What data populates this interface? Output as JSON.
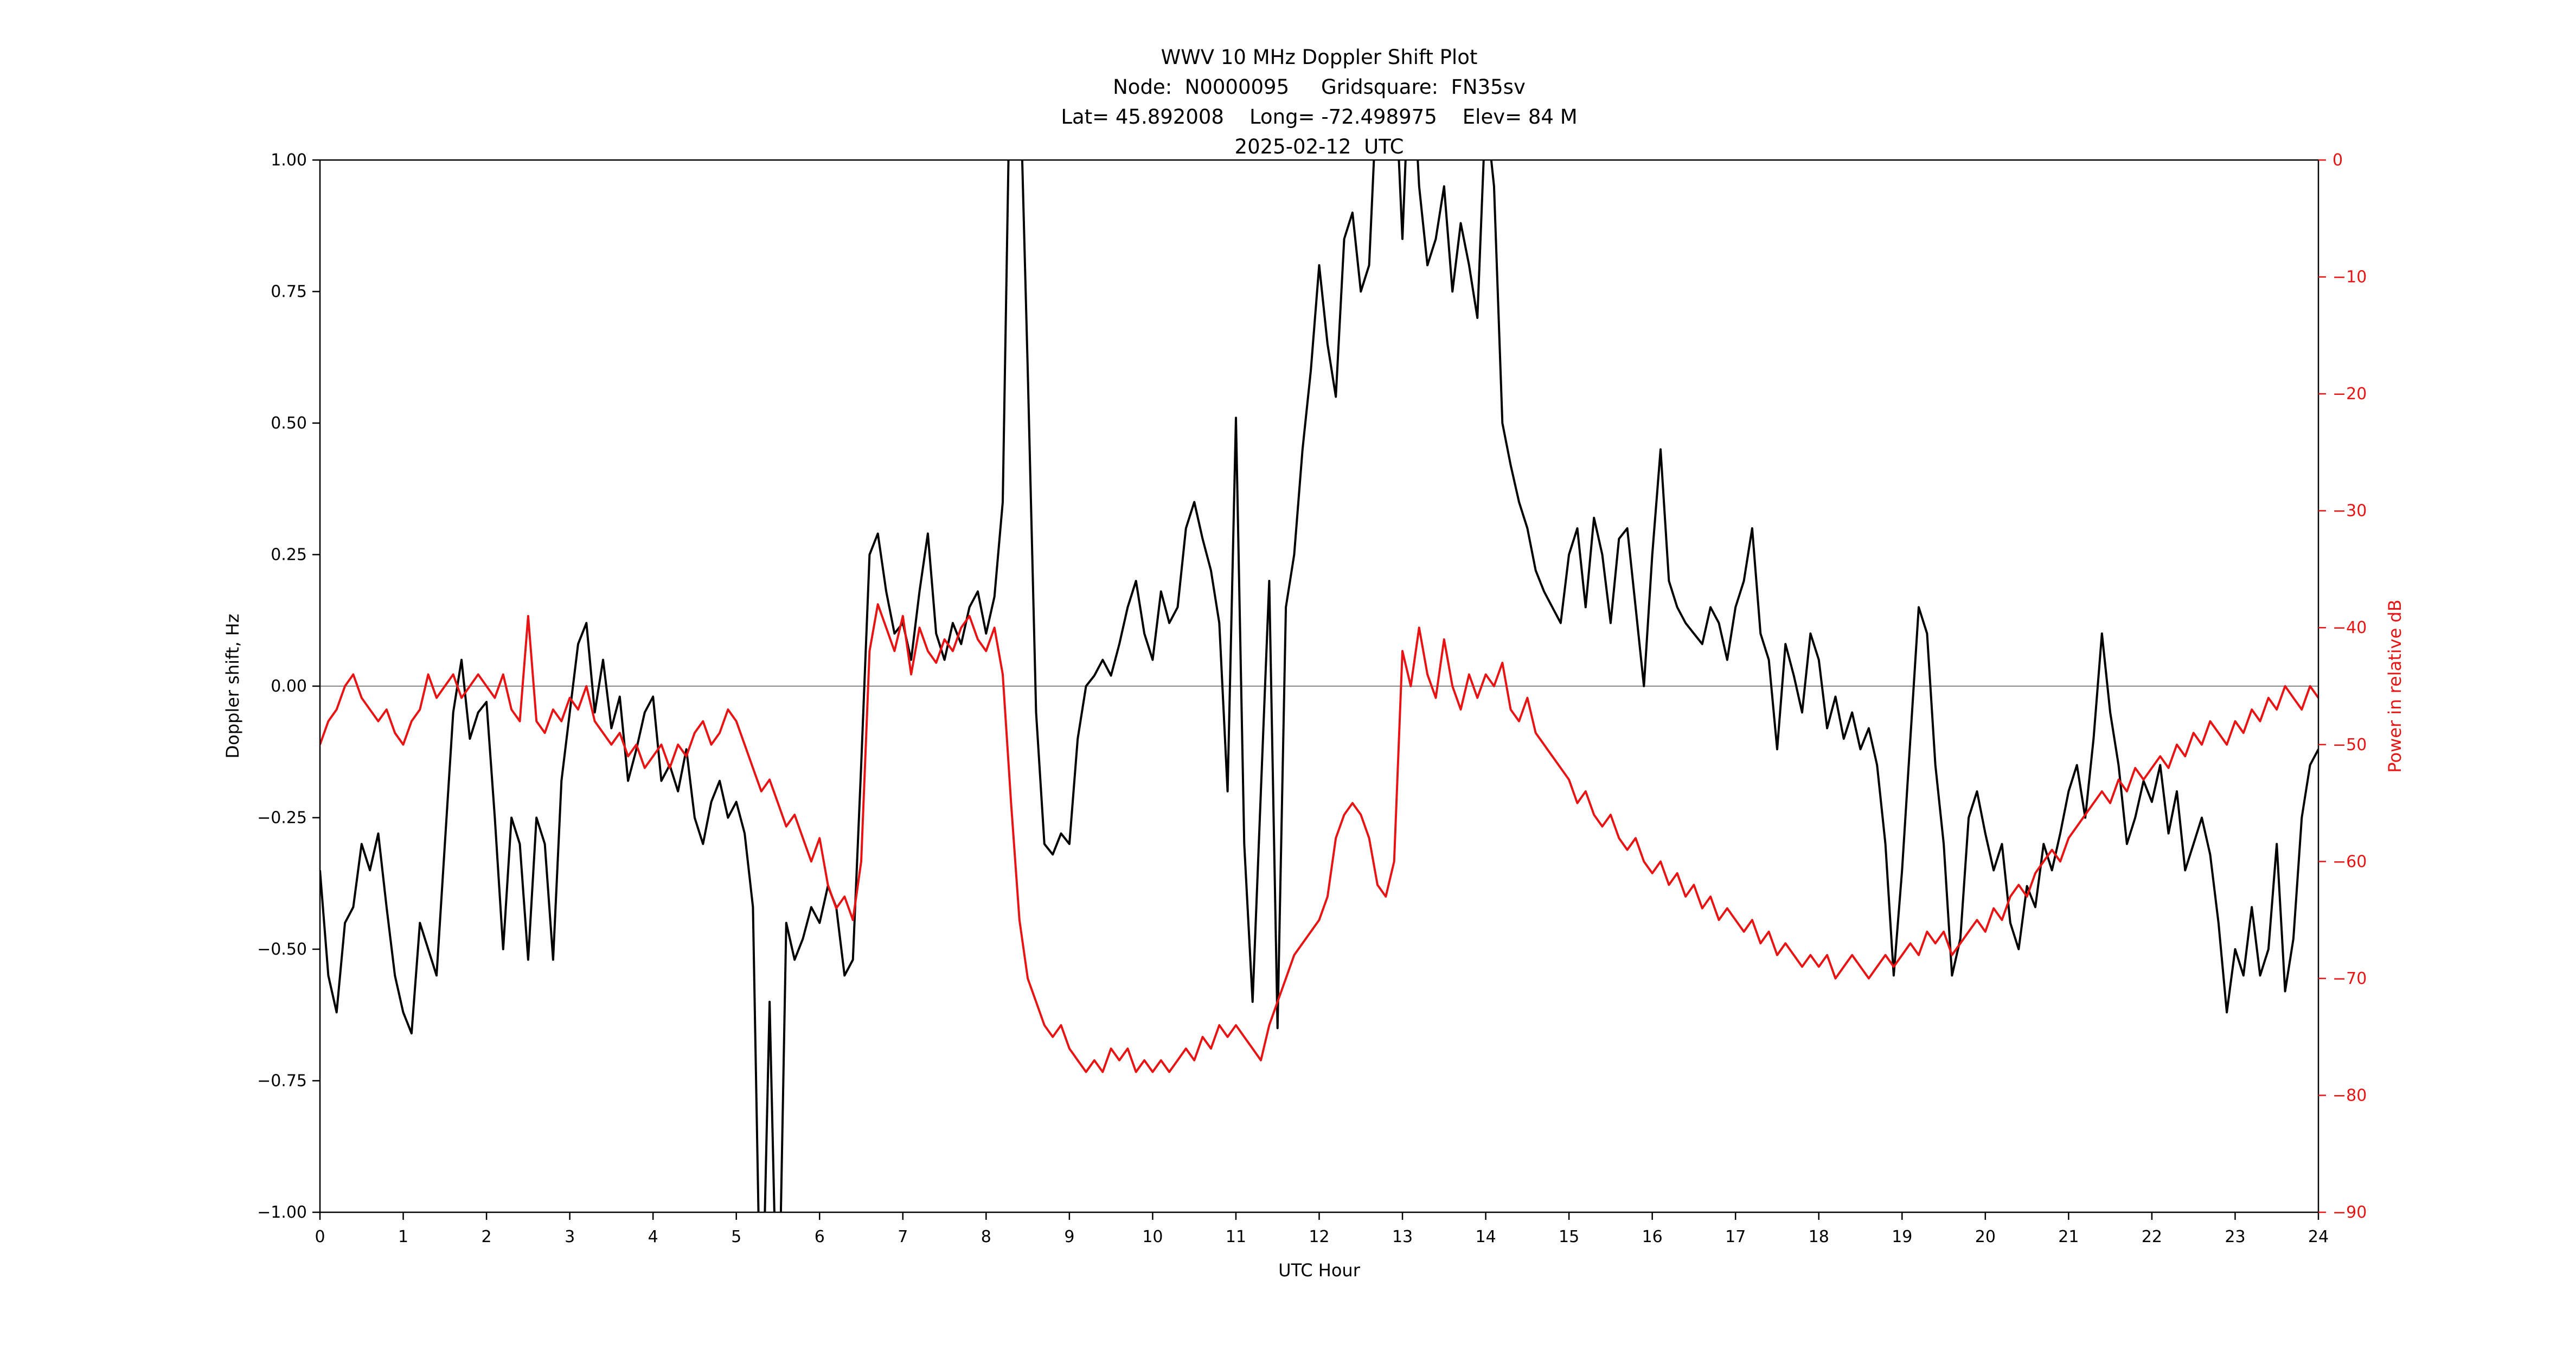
{
  "page": {
    "background": "#ffffff"
  },
  "titles": [
    "WWV 10 MHz Doppler Shift Plot",
    "Node:  N0000095     Gridsquare:  FN35sv",
    "Lat= 45.892008    Long= -72.498975    Elev= 84 M",
    "2025-02-12  UTC"
  ],
  "chart_data": {
    "type": "line",
    "title": "WWV 10 MHz Doppler Shift Plot",
    "xlabel": "UTC Hour",
    "x_start": 0,
    "x_step": 0.1,
    "x_range": [
      0,
      24
    ],
    "grid": false,
    "x_ticks": {
      "values": [
        0,
        1,
        2,
        3,
        4,
        5,
        6,
        7,
        8,
        9,
        10,
        11,
        12,
        13,
        14,
        15,
        16,
        17,
        18,
        19,
        20,
        21,
        22,
        23,
        24
      ],
      "labels": [
        "0",
        "1",
        "2",
        "3",
        "4",
        "5",
        "6",
        "7",
        "8",
        "9",
        "10",
        "11",
        "12",
        "13",
        "14",
        "15",
        "16",
        "17",
        "18",
        "19",
        "20",
        "21",
        "22",
        "23",
        "24"
      ]
    },
    "left_axis": {
      "label": "Doppler shift, Hz",
      "lim": [
        -1,
        1
      ],
      "tick_values": [
        1.0,
        0.75,
        0.5,
        0.25,
        0.0,
        -0.25,
        -0.5,
        -0.75,
        -1.0
      ],
      "tick_labels": [
        "1.00",
        "0.75",
        "0.50",
        "0.25",
        "0.00",
        "−0.25",
        "−0.50",
        "−0.75",
        "−1.00"
      ],
      "color": "#000000"
    },
    "right_axis": {
      "label": "Power in relative dB",
      "lim": [
        -90,
        0
      ],
      "tick_values": [
        0,
        -10,
        -20,
        -30,
        -40,
        -50,
        -60,
        -70,
        -80,
        -90
      ],
      "tick_labels": [
        "0",
        "−10",
        "−20",
        "−30",
        "−40",
        "−50",
        "−60",
        "−70",
        "−80",
        "−90"
      ],
      "color": "#e81313"
    },
    "zero_line": {
      "value": 0,
      "color": "#888888"
    },
    "series": [
      {
        "name": "Doppler shift",
        "axis": "left",
        "color": "#000000",
        "values": [
          -0.35,
          -0.55,
          -0.62,
          -0.45,
          -0.42,
          -0.3,
          -0.35,
          -0.28,
          -0.42,
          -0.55,
          -0.62,
          -0.66,
          -0.45,
          -0.5,
          -0.55,
          -0.3,
          -0.05,
          0.05,
          -0.1,
          -0.05,
          -0.03,
          -0.25,
          -0.5,
          -0.25,
          -0.3,
          -0.52,
          -0.25,
          -0.3,
          -0.52,
          -0.18,
          -0.05,
          0.08,
          0.12,
          -0.05,
          0.05,
          -0.08,
          -0.02,
          -0.18,
          -0.12,
          -0.05,
          -0.02,
          -0.18,
          -0.15,
          -0.2,
          -0.12,
          -0.25,
          -0.3,
          -0.22,
          -0.18,
          -0.25,
          -0.22,
          -0.28,
          -0.42,
          -1.3,
          -0.6,
          -1.3,
          -0.45,
          -0.52,
          -0.48,
          -0.42,
          -0.45,
          -0.38,
          -0.42,
          -0.55,
          -0.52,
          -0.15,
          0.25,
          0.29,
          0.18,
          0.1,
          0.12,
          0.05,
          0.18,
          0.29,
          0.1,
          0.05,
          0.12,
          0.08,
          0.15,
          0.18,
          0.1,
          0.17,
          0.35,
          1.3,
          1.2,
          0.6,
          -0.05,
          -0.3,
          -0.32,
          -0.28,
          -0.3,
          -0.1,
          0.0,
          0.02,
          0.05,
          0.02,
          0.08,
          0.15,
          0.2,
          0.1,
          0.05,
          0.18,
          0.12,
          0.15,
          0.3,
          0.35,
          0.28,
          0.22,
          0.12,
          -0.2,
          0.51,
          -0.3,
          -0.6,
          -0.2,
          0.2,
          -0.65,
          0.15,
          0.25,
          0.45,
          0.6,
          0.8,
          0.65,
          0.55,
          0.85,
          0.9,
          0.75,
          0.8,
          1.15,
          1.3,
          1.2,
          0.85,
          1.25,
          0.95,
          0.8,
          0.85,
          0.95,
          0.75,
          0.88,
          0.8,
          0.7,
          1.1,
          0.95,
          0.5,
          0.42,
          0.35,
          0.3,
          0.22,
          0.18,
          0.15,
          0.12,
          0.25,
          0.3,
          0.15,
          0.32,
          0.25,
          0.12,
          0.28,
          0.3,
          0.15,
          0.0,
          0.25,
          0.45,
          0.2,
          0.15,
          0.12,
          0.1,
          0.08,
          0.15,
          0.12,
          0.05,
          0.15,
          0.2,
          0.3,
          0.1,
          0.05,
          -0.12,
          0.08,
          0.02,
          -0.05,
          0.1,
          0.05,
          -0.08,
          -0.02,
          -0.1,
          -0.05,
          -0.12,
          -0.08,
          -0.15,
          -0.3,
          -0.55,
          -0.35,
          -0.1,
          0.15,
          0.1,
          -0.15,
          -0.3,
          -0.55,
          -0.48,
          -0.25,
          -0.2,
          -0.28,
          -0.35,
          -0.3,
          -0.45,
          -0.5,
          -0.38,
          -0.42,
          -0.3,
          -0.35,
          -0.28,
          -0.2,
          -0.15,
          -0.25,
          -0.1,
          0.1,
          -0.05,
          -0.15,
          -0.3,
          -0.25,
          -0.18,
          -0.22,
          -0.15,
          -0.28,
          -0.2,
          -0.35,
          -0.3,
          -0.25,
          -0.32,
          -0.45,
          -0.62,
          -0.5,
          -0.55,
          -0.42,
          -0.55,
          -0.5,
          -0.3,
          -0.58,
          -0.48,
          -0.25,
          -0.15,
          -0.12
        ]
      },
      {
        "name": "Relative power",
        "axis": "right",
        "color": "#e81313",
        "values": [
          -50,
          -48,
          -47,
          -45,
          -44,
          -46,
          -47,
          -48,
          -47,
          -49,
          -50,
          -48,
          -47,
          -44,
          -46,
          -45,
          -44,
          -46,
          -45,
          -44,
          -45,
          -46,
          -44,
          -47,
          -48,
          -39,
          -48,
          -49,
          -47,
          -48,
          -46,
          -47,
          -45,
          -48,
          -49,
          -50,
          -49,
          -51,
          -50,
          -52,
          -51,
          -50,
          -52,
          -50,
          -51,
          -49,
          -48,
          -50,
          -49,
          -47,
          -48,
          -50,
          -52,
          -54,
          -53,
          -55,
          -57,
          -56,
          -58,
          -60,
          -58,
          -62,
          -64,
          -63,
          -65,
          -60,
          -42,
          -38,
          -40,
          -42,
          -39,
          -44,
          -40,
          -42,
          -43,
          -41,
          -42,
          -40,
          -39,
          -41,
          -42,
          -40,
          -44,
          -55,
          -65,
          -70,
          -72,
          -74,
          -75,
          -74,
          -76,
          -77,
          -78,
          -77,
          -78,
          -76,
          -77,
          -76,
          -78,
          -77,
          -78,
          -77,
          -78,
          -77,
          -76,
          -77,
          -75,
          -76,
          -74,
          -75,
          -74,
          -75,
          -76,
          -77,
          -74,
          -72,
          -70,
          -68,
          -67,
          -66,
          -65,
          -63,
          -58,
          -56,
          -55,
          -56,
          -58,
          -62,
          -63,
          -60,
          -42,
          -45,
          -40,
          -44,
          -46,
          -41,
          -45,
          -47,
          -44,
          -46,
          -44,
          -45,
          -43,
          -47,
          -48,
          -46,
          -49,
          -50,
          -51,
          -52,
          -53,
          -55,
          -54,
          -56,
          -57,
          -56,
          -58,
          -59,
          -58,
          -60,
          -61,
          -60,
          -62,
          -61,
          -63,
          -62,
          -64,
          -63,
          -65,
          -64,
          -65,
          -66,
          -65,
          -67,
          -66,
          -68,
          -67,
          -68,
          -69,
          -68,
          -69,
          -68,
          -70,
          -69,
          -68,
          -69,
          -70,
          -69,
          -68,
          -69,
          -68,
          -67,
          -68,
          -66,
          -67,
          -66,
          -68,
          -67,
          -66,
          -65,
          -66,
          -64,
          -65,
          -63,
          -62,
          -63,
          -61,
          -60,
          -59,
          -60,
          -58,
          -57,
          -56,
          -55,
          -54,
          -55,
          -53,
          -54,
          -52,
          -53,
          -52,
          -51,
          -52,
          -50,
          -51,
          -49,
          -50,
          -48,
          -49,
          -50,
          -48,
          -49,
          -47,
          -48,
          -46,
          -47,
          -45,
          -46,
          -47,
          -45,
          -46
        ]
      }
    ]
  }
}
